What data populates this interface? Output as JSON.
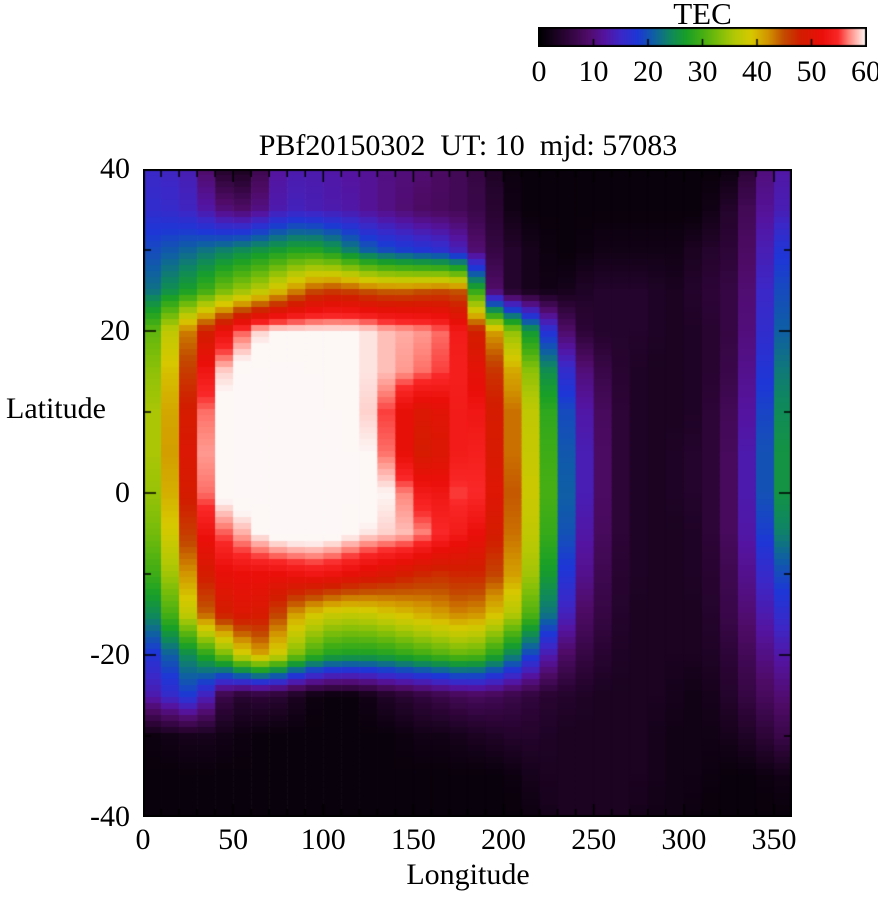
{
  "title": "PBf20150302  UT: 10  mjd: 57083",
  "colorbar": {
    "title": "TEC",
    "min": 0,
    "max": 60,
    "tick_labels": [
      "0",
      "10",
      "20",
      "30",
      "40",
      "50",
      "60"
    ]
  },
  "axes": {
    "x": {
      "label": "Longitude",
      "range": [
        0,
        360
      ],
      "major_tick_values": [
        0,
        50,
        100,
        150,
        200,
        250,
        300,
        350
      ],
      "minor_step": 10
    },
    "y": {
      "label": "Latitude",
      "range": [
        -40,
        40
      ],
      "major_tick_values": [
        40,
        20,
        0,
        -20,
        -40
      ],
      "minor_step": 10
    }
  },
  "chart_data": {
    "type": "heatmap",
    "title": "PBf20150302  UT: 10  mjd: 57083",
    "xlabel": "Longitude",
    "ylabel": "Latitude",
    "value_name": "TEC",
    "xlim": [
      0,
      360
    ],
    "ylim": [
      -40,
      40
    ],
    "color_range": [
      0,
      60
    ],
    "legend_position": "top-right colorbar",
    "grid": "off",
    "lon_values": [
      0,
      10,
      20,
      30,
      40,
      50,
      60,
      70,
      80,
      90,
      100,
      110,
      120,
      130,
      140,
      150,
      160,
      170,
      180,
      190,
      200,
      210,
      220,
      230,
      240,
      250,
      260,
      270,
      280,
      290,
      300,
      310,
      320,
      330,
      340,
      350,
      360
    ],
    "lat_values": [
      40,
      35,
      30,
      25,
      20,
      15,
      10,
      5,
      0,
      -5,
      -10,
      -15,
      -20,
      -25,
      -30,
      -35,
      -40
    ],
    "tec_grid": [
      [
        15,
        15,
        14,
        13,
        5,
        3,
        3,
        11,
        13,
        13,
        13,
        12,
        12,
        11,
        10,
        10,
        9,
        8,
        7,
        5,
        2,
        1,
        1,
        1,
        1,
        1,
        1,
        1,
        1,
        1,
        1,
        1,
        1,
        2,
        8,
        12,
        13
      ],
      [
        16,
        16,
        15,
        14,
        11,
        9,
        9,
        12,
        14,
        14,
        13,
        13,
        12,
        11,
        10,
        9,
        8,
        8,
        7,
        6,
        3,
        1,
        1,
        1,
        1,
        1,
        1,
        1,
        1,
        1,
        1,
        1,
        3,
        5,
        10,
        13,
        14
      ],
      [
        19,
        20,
        21,
        22,
        23,
        24,
        25,
        26,
        27,
        28,
        27,
        25,
        22,
        20,
        19,
        18,
        17,
        16,
        12,
        7,
        5,
        3,
        2,
        1,
        1,
        2,
        2,
        2,
        2,
        2,
        2,
        4,
        4,
        6,
        11,
        16,
        19
      ],
      [
        21,
        24,
        26,
        28,
        31,
        34,
        35,
        38,
        41,
        44,
        46,
        46,
        45,
        44,
        44,
        44,
        45,
        45,
        44,
        13,
        5,
        3,
        2,
        2,
        3,
        4,
        4,
        4,
        4,
        3,
        3,
        5,
        5,
        7,
        12,
        18,
        21
      ],
      [
        29,
        34,
        40,
        46,
        50,
        54,
        58,
        60,
        60,
        60,
        60,
        60,
        60,
        59,
        58,
        58,
        57,
        56,
        51,
        45,
        38,
        30,
        22,
        12,
        6,
        4,
        4,
        4,
        4,
        3,
        3,
        4,
        5,
        7,
        13,
        19,
        23
      ],
      [
        32,
        36,
        43,
        49,
        57,
        61,
        62,
        62,
        62,
        62,
        61,
        61,
        60,
        59,
        58,
        57,
        56,
        55,
        53,
        49,
        44,
        38,
        30,
        20,
        12,
        8,
        5,
        4,
        3,
        3,
        3,
        4,
        5,
        8,
        14,
        21,
        25
      ],
      [
        33,
        38,
        44,
        53,
        60,
        62,
        62,
        62,
        62,
        62,
        62,
        61,
        60,
        58,
        53,
        50,
        49,
        52,
        55,
        51,
        46,
        41,
        33,
        24,
        15,
        10,
        6,
        4,
        3,
        3,
        3,
        4,
        6,
        9,
        15,
        23,
        26
      ],
      [
        33,
        38,
        45,
        54,
        61,
        62,
        62,
        62,
        62,
        62,
        62,
        62,
        61,
        59,
        54,
        49,
        48,
        51,
        56,
        52,
        46,
        41,
        34,
        25,
        16,
        11,
        6,
        4,
        3,
        3,
        4,
        4,
        6,
        10,
        16,
        24,
        27
      ],
      [
        32,
        37,
        44,
        53,
        60,
        62,
        62,
        62,
        62,
        62,
        62,
        62,
        62,
        61,
        59,
        55,
        52,
        54,
        57,
        53,
        47,
        42,
        34,
        26,
        16,
        11,
        6,
        4,
        3,
        3,
        4,
        4,
        6,
        10,
        16,
        24,
        27
      ],
      [
        30,
        35,
        42,
        50,
        55,
        57,
        59,
        61,
        62,
        62,
        62,
        61,
        60,
        59,
        59,
        58,
        56,
        54,
        53,
        51,
        46,
        41,
        33,
        25,
        15,
        10,
        6,
        4,
        3,
        3,
        3,
        4,
        6,
        10,
        15,
        22,
        25
      ],
      [
        27,
        32,
        38,
        46,
        51,
        52,
        52,
        52,
        52,
        53,
        53,
        52,
        51,
        50,
        49,
        48,
        47,
        47,
        48,
        47,
        44,
        39,
        31,
        22,
        13,
        9,
        5,
        4,
        3,
        3,
        3,
        4,
        5,
        9,
        13,
        18,
        21
      ],
      [
        22,
        27,
        33,
        41,
        47,
        49,
        50,
        48,
        43,
        40,
        38,
        37,
        37,
        38,
        39,
        40,
        41,
        42,
        43,
        41,
        38,
        34,
        27,
        18,
        10,
        7,
        5,
        3,
        3,
        3,
        3,
        3,
        5,
        8,
        11,
        15,
        17
      ],
      [
        16,
        19,
        23,
        26,
        30,
        35,
        41,
        41,
        35,
        31,
        28,
        27,
        27,
        27,
        28,
        29,
        30,
        31,
        32,
        30,
        26,
        22,
        16,
        10,
        7,
        5,
        4,
        3,
        3,
        3,
        3,
        3,
        4,
        6,
        9,
        12,
        13
      ],
      [
        12,
        14,
        17,
        19,
        9,
        4,
        5,
        5,
        4,
        2,
        1,
        1,
        1,
        3,
        4,
        5,
        6,
        7,
        8,
        8,
        7,
        6,
        5,
        4,
        4,
        3,
        3,
        3,
        3,
        3,
        2,
        2,
        3,
        5,
        7,
        9,
        10
      ],
      [
        1,
        2,
        2,
        3,
        2,
        2,
        1,
        1,
        1,
        1,
        1,
        1,
        1,
        1,
        1,
        2,
        2,
        2,
        3,
        3,
        4,
        4,
        4,
        3,
        3,
        3,
        3,
        3,
        3,
        2,
        2,
        2,
        2,
        3,
        4,
        6,
        7
      ],
      [
        1,
        1,
        1,
        1,
        1,
        1,
        1,
        1,
        1,
        1,
        1,
        1,
        1,
        1,
        1,
        1,
        1,
        1,
        1,
        1,
        1,
        2,
        3,
        3,
        3,
        3,
        3,
        3,
        3,
        2,
        2,
        2,
        1,
        1,
        1,
        2,
        2
      ],
      [
        1,
        1,
        1,
        1,
        1,
        1,
        1,
        1,
        1,
        1,
        1,
        1,
        1,
        1,
        1,
        1,
        1,
        1,
        1,
        1,
        1,
        1,
        2,
        3,
        3,
        3,
        3,
        3,
        2,
        2,
        2,
        1,
        1,
        1,
        1,
        1,
        1
      ]
    ],
    "palette_stops": [
      {
        "v": 0,
        "color": "#000000"
      },
      {
        "v": 5,
        "color": "#2d0537"
      },
      {
        "v": 9,
        "color": "#500c69"
      },
      {
        "v": 12,
        "color": "#5514a0"
      },
      {
        "v": 15,
        "color": "#3c28c8"
      },
      {
        "v": 18,
        "color": "#1e37d7"
      },
      {
        "v": 21,
        "color": "#0f5fa5"
      },
      {
        "v": 24,
        "color": "#0f8761"
      },
      {
        "v": 27,
        "color": "#19a028"
      },
      {
        "v": 30,
        "color": "#46af14"
      },
      {
        "v": 33,
        "color": "#7dbe0a"
      },
      {
        "v": 36,
        "color": "#b4c805"
      },
      {
        "v": 39,
        "color": "#d7c800"
      },
      {
        "v": 42,
        "color": "#d29600"
      },
      {
        "v": 45,
        "color": "#c34b00"
      },
      {
        "v": 48,
        "color": "#d21e00"
      },
      {
        "v": 52,
        "color": "#eb0f0a"
      },
      {
        "v": 55,
        "color": "#fa2828"
      },
      {
        "v": 57,
        "color": "#ff877d"
      },
      {
        "v": 59,
        "color": "#ffd2cd"
      },
      {
        "v": 60,
        "color": "#fdf7f6"
      },
      {
        "v": 63,
        "color": "#fdf9f8"
      }
    ]
  },
  "layout_colors": {
    "border": "#000000",
    "background": "#ffffff",
    "text": "#000000"
  }
}
